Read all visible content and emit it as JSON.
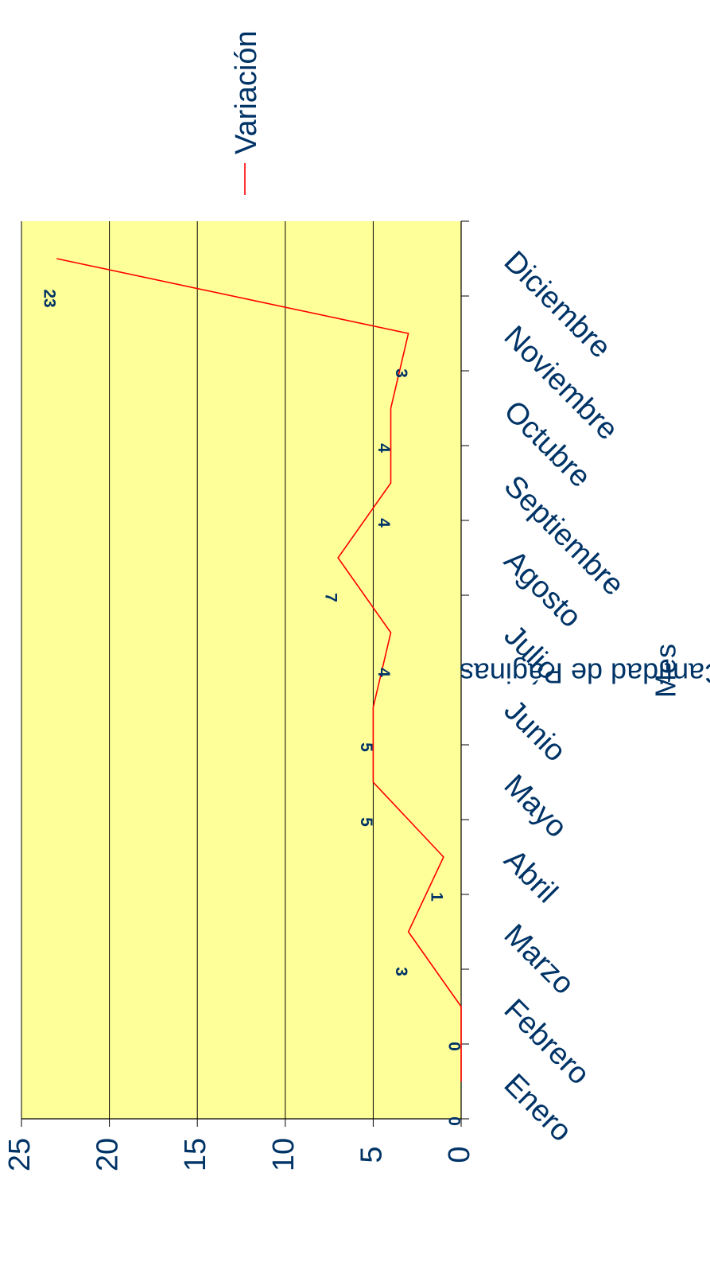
{
  "chart_data": {
    "type": "line",
    "categories": [
      "Enero",
      "Febrero",
      "Marzo",
      "Abril",
      "Mayo",
      "Junio",
      "Julio",
      "Agosto",
      "Septiembre",
      "Octubre",
      "Noviembre",
      "Diciembre"
    ],
    "series": [
      {
        "name": "Variación",
        "values": [
          0,
          0,
          3,
          1,
          5,
          5,
          4,
          7,
          4,
          4,
          3,
          23
        ]
      }
    ],
    "data_labels": [
      "0",
      "0",
      "3",
      "1",
      "5",
      "5",
      "4",
      "7",
      "4",
      "4",
      "3",
      "23"
    ],
    "y_ticks": [
      "0",
      "5",
      "10",
      "15",
      "20",
      "25"
    ],
    "ylim": [
      0,
      25
    ],
    "title": "",
    "xlabel": "Mes",
    "ylabel": "Cantidad de Páginas",
    "grid": true,
    "legend_position": "right",
    "orientation": "rotated 90° clockwise",
    "colors": {
      "plot_background": "#ffff99",
      "line": "#ff0000",
      "text": "#003366",
      "grid": "#000000"
    }
  }
}
